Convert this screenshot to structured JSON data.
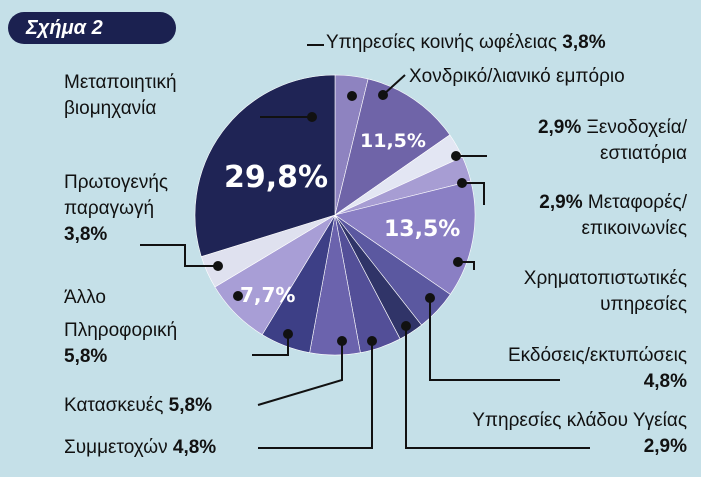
{
  "figure_label": "Σχήμα 2",
  "chart_data": {
    "type": "pie",
    "slices": [
      {
        "name": "Υπηρεσίες κοινής ωφέλειας",
        "value": 3.8,
        "value_label": "3,8%",
        "color": "#8e83c0"
      },
      {
        "name": "Χονδρικό/λιανικό εμπόριο",
        "value": 11.5,
        "value_label": "11,5%",
        "color": "#6f64a8"
      },
      {
        "name": "Ξενοδοχεία/ εστιατόρια",
        "value": 2.9,
        "value_label": "2,9%",
        "color": "#e3e6f3"
      },
      {
        "name": "Μεταφορές/ επικοινωνίες",
        "value": 2.9,
        "value_label": "2,9%",
        "color": "#a79dd3"
      },
      {
        "name": "Χρηματοπιστωτικές υπηρεσίες",
        "value": 13.5,
        "value_label": "13,5%",
        "color": "#8a7fc4"
      },
      {
        "name": "Εκδόσεις/εκτυπώσεις",
        "value": 4.8,
        "value_label": "4,8%",
        "color": "#5b58a0"
      },
      {
        "name": "Υπηρεσίες κλάδου Υγείας",
        "value": 2.9,
        "value_label": "2,9%",
        "color": "#303468"
      },
      {
        "name": "Συμμετοχών",
        "value": 4.8,
        "value_label": "4,8%",
        "color": "#534f98"
      },
      {
        "name": "Κατασκευές",
        "value": 5.8,
        "value_label": "5,8%",
        "color": "#6b63ad"
      },
      {
        "name": "Πληροφορική",
        "value": 5.8,
        "value_label": "5,8%",
        "color": "#3d3f86"
      },
      {
        "name": "Άλλο",
        "value": 7.7,
        "value_label": "7,7%",
        "color": "#a89ed6"
      },
      {
        "name": "Πρωτογενής παραγωγή",
        "value": 3.8,
        "value_label": "3,8%",
        "color": "#dfe1ef"
      },
      {
        "name": "Μεταποιητική βιομηχανία",
        "value": 29.8,
        "value_label": "29,8%",
        "color": "#1f2455"
      }
    ]
  },
  "labels": {
    "utilities": {
      "text": "Υπηρεσίες κοινής ωφέλειας",
      "pct": "3,8%"
    },
    "trade": {
      "text": "Χονδρικό/λιανικό εμπόριο"
    },
    "trade_pct": "11,5%",
    "hotels": {
      "pct": "2,9%",
      "line1": "Ξενοδοχεία/",
      "line2": "εστιατόρια"
    },
    "transport": {
      "pct": "2,9%",
      "line1": "Μεταφορές/",
      "line2": "επικοινωνίες"
    },
    "finance": {
      "line1": "Χρηματοπιστωτικές",
      "line2": "υπηρεσίες"
    },
    "finance_pct": "13,5%",
    "publishing": {
      "text": "Εκδόσεις/εκτυπώσεις",
      "pct": "4,8%"
    },
    "health": {
      "text": "Υπηρεσίες κλάδου Υγείας",
      "pct": "2,9%"
    },
    "holdings": {
      "text": "Συμμετοχών",
      "pct": "4,8%"
    },
    "construction": {
      "text": "Κατασκευές",
      "pct": "5,8%"
    },
    "it": {
      "text": "Πληροφορική",
      "pct": "5,8%"
    },
    "other": {
      "text": "Άλλο"
    },
    "other_pct": "7,7%",
    "primary": {
      "line1": "Πρωτογενής",
      "line2": "παραγωγή",
      "pct": "3,8%"
    },
    "manufacturing": {
      "line1": "Μεταποιητική",
      "line2": "βιομηχανία"
    },
    "manufacturing_pct": "29,8%"
  },
  "colors": {
    "background": "#c5e0e8",
    "leader": "#111111",
    "badge": "#1b2150"
  }
}
